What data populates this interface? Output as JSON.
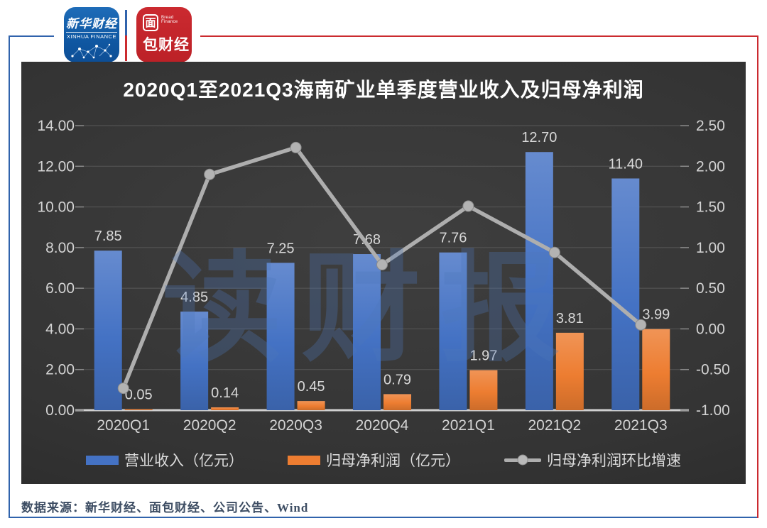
{
  "colors": {
    "frame_blue": "#3063ac",
    "frame_red": "#cb2a2f",
    "chart_bg_dark": "#343434",
    "gridline": "#575757",
    "axis_line": "#d0d0d0",
    "tick_text": "#d3d3d3",
    "data_label_text": "#d9d9d9",
    "watermark_blue": "#4e78bb"
  },
  "header": {
    "logo_xinhua": {
      "title": "新华财经",
      "subtitle": "XINHUA FINANCE"
    },
    "logo_bread": {
      "char_top": "面",
      "brand_en": "Bread Finance",
      "chars_bottom": "包财经"
    }
  },
  "chart_data": {
    "type": "bar+line combo",
    "title": "2020Q1至2021Q3海南矿业单季度营业收入及归母净利润",
    "watermark": "读财报",
    "categories": [
      "2020Q1",
      "2020Q2",
      "2020Q3",
      "2020Q4",
      "2021Q1",
      "2021Q2",
      "2021Q3"
    ],
    "series": [
      {
        "name": "营业收入（亿元）",
        "type": "bar",
        "axis": "left",
        "color": "#4472c4",
        "values": [
          7.85,
          4.85,
          7.25,
          7.68,
          7.76,
          12.7,
          11.4
        ],
        "labels": [
          "7.85",
          "4.85",
          "7.25",
          "7.68",
          "7.76",
          "12.70",
          "11.40"
        ]
      },
      {
        "name": "归母净利润（亿元）",
        "type": "bar",
        "axis": "left",
        "color": "#ed7d31",
        "values": [
          0.05,
          0.14,
          0.45,
          0.79,
          1.97,
          3.81,
          3.99
        ],
        "labels": [
          "0.05",
          "0.14",
          "0.45",
          "0.79",
          "1.97",
          "3.81",
          "3.99"
        ]
      },
      {
        "name": "归母净利润环比增速",
        "type": "line",
        "axis": "right",
        "color": "#aeaeae",
        "values": [
          -0.73,
          1.9,
          2.23,
          0.79,
          1.51,
          0.94,
          0.05
        ]
      }
    ],
    "left_axis": {
      "min": 0,
      "max": 14,
      "step": 2,
      "ticks": [
        "14.00",
        "12.00",
        "10.00",
        "8.00",
        "6.00",
        "4.00",
        "2.00",
        "0.00"
      ]
    },
    "right_axis": {
      "min": -1,
      "max": 2.5,
      "step": 0.5,
      "ticks": [
        "2.50",
        "2.00",
        "1.50",
        "1.00",
        "0.50",
        "0.00",
        "-0.50",
        "-1.00"
      ]
    },
    "grid": true,
    "legend_position": "bottom"
  },
  "footer": {
    "source": "数据来源：新华财经、面包财经、公司公告、Wind"
  }
}
